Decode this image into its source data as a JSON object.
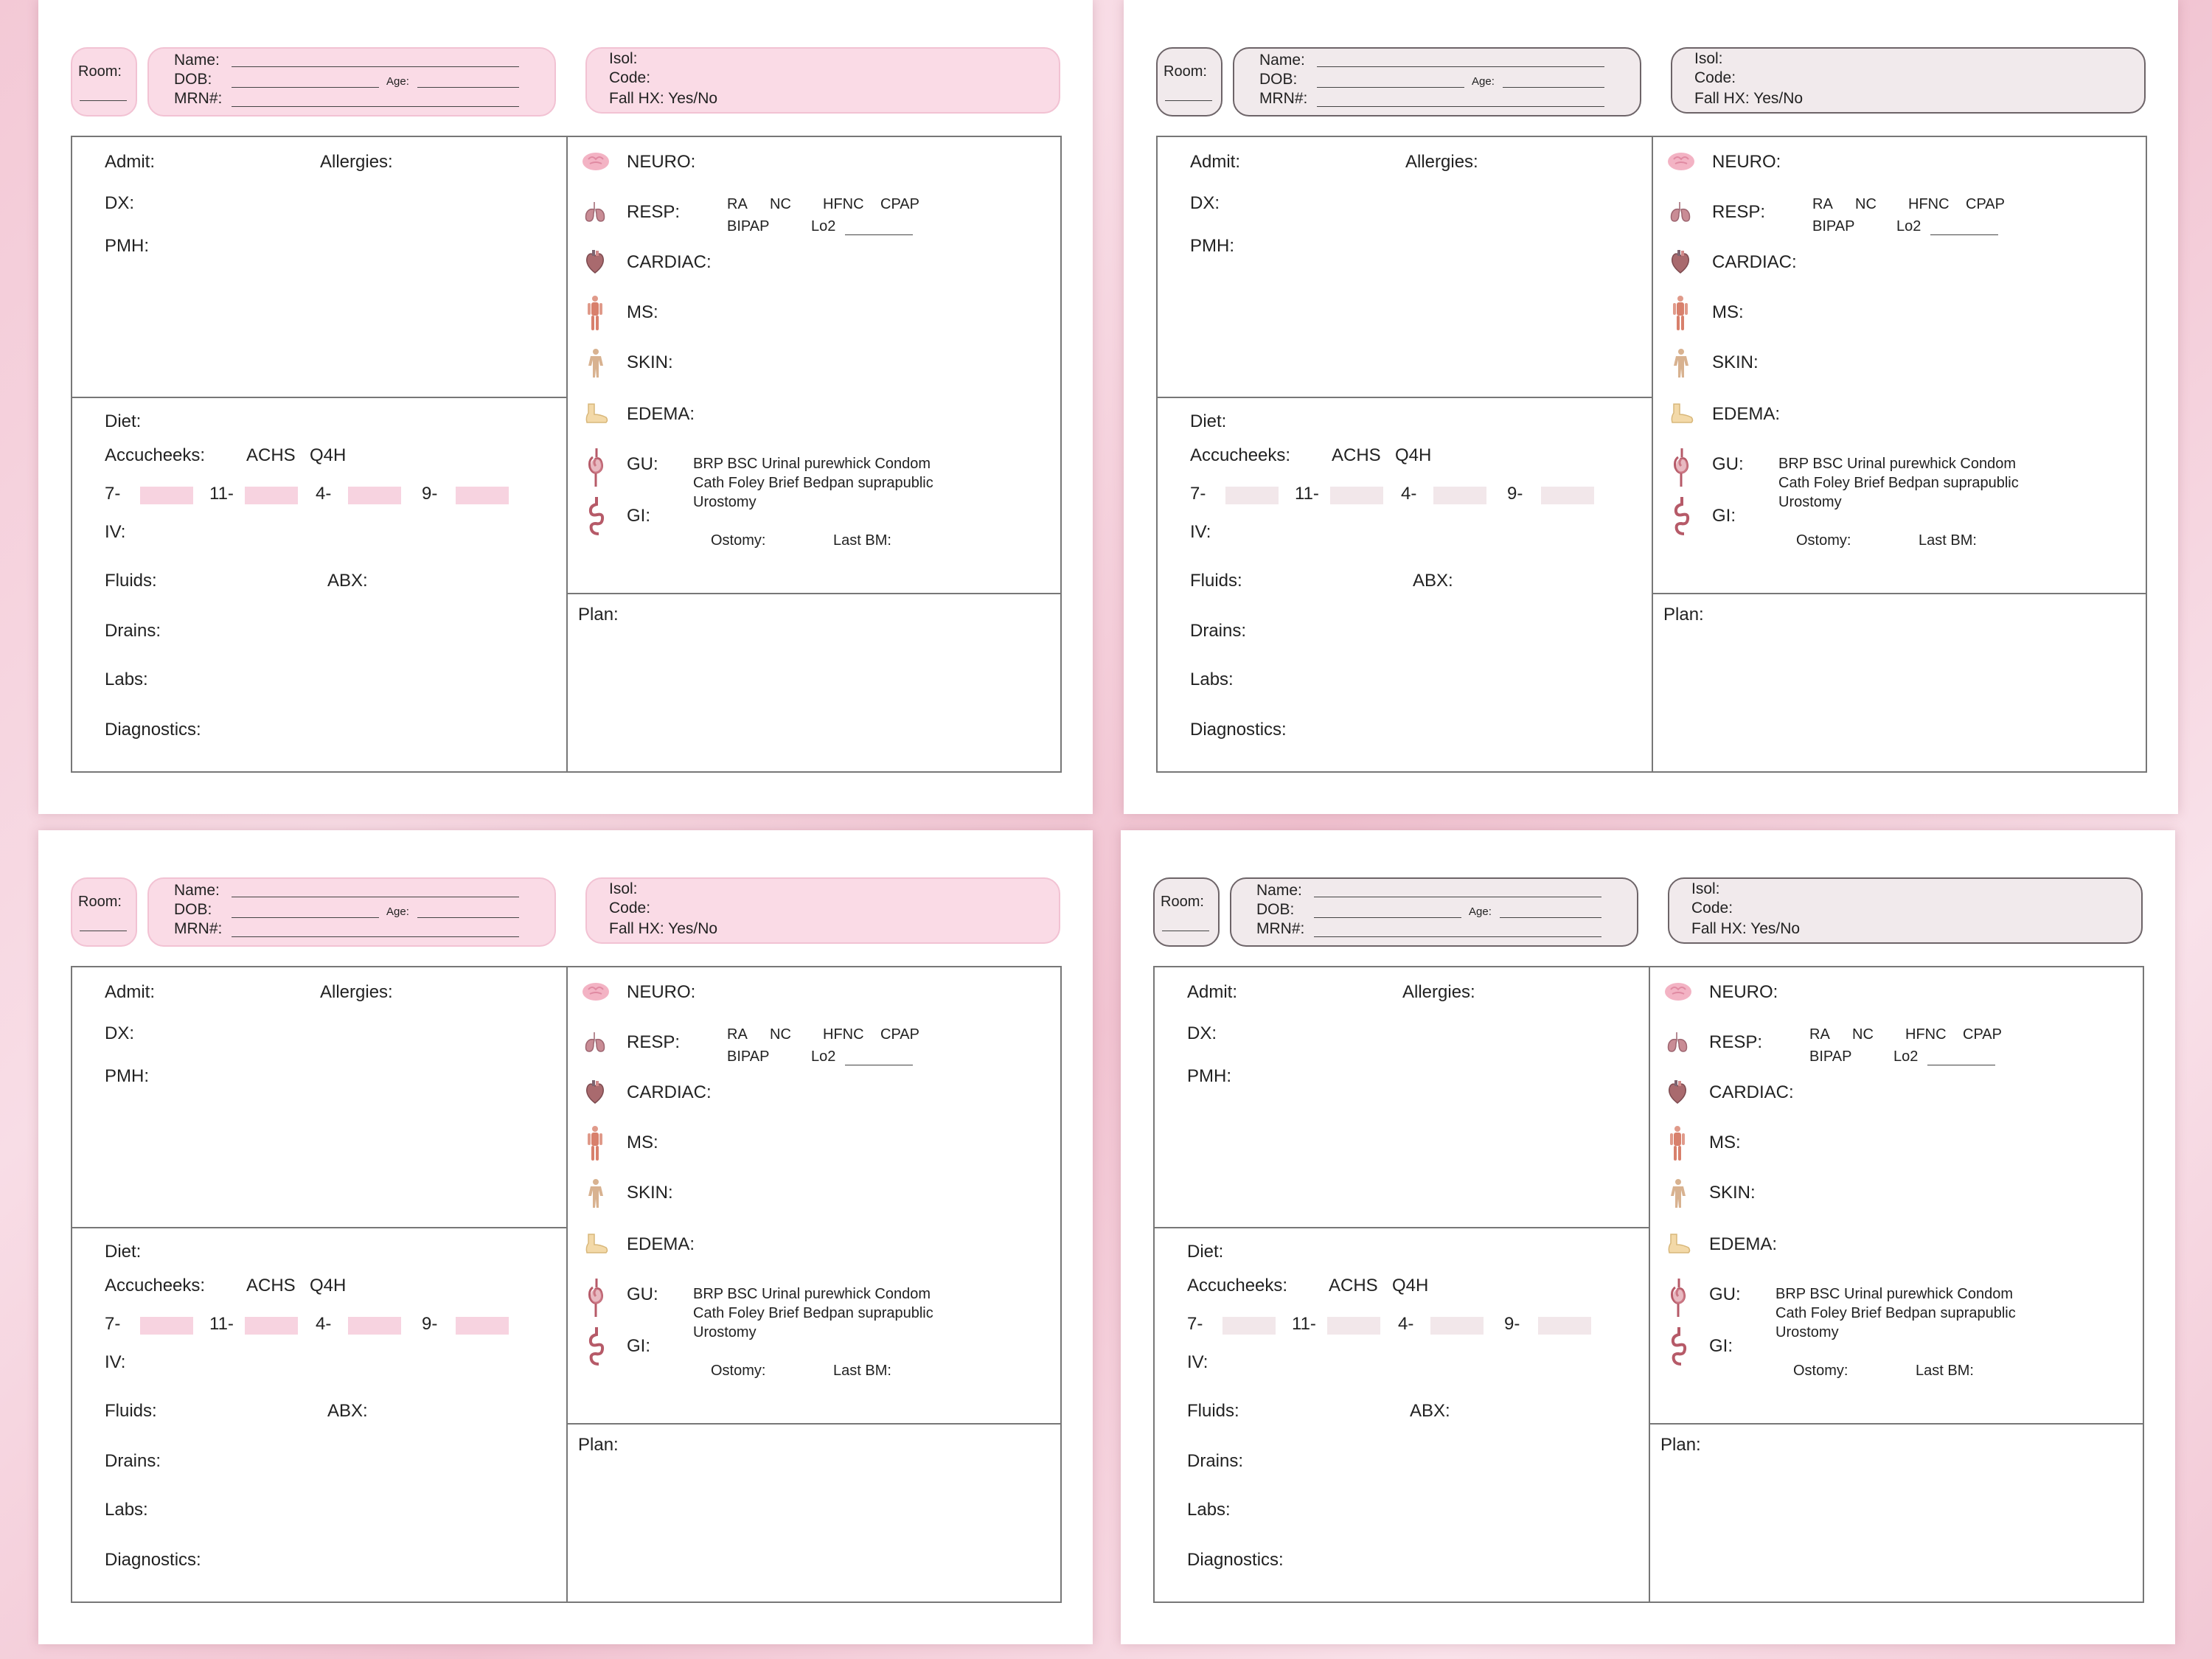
{
  "header": {
    "room_label": "Room:",
    "name_label": "Name:",
    "dob_label": "DOB:",
    "age_label": "Age:",
    "mrn_label": "MRN#:",
    "isol_label": "Isol:",
    "code_label": "Code:",
    "fall_label": "Fall HX: Yes/No"
  },
  "left": {
    "admit": "Admit:",
    "allergies": "Allergies:",
    "dx": "DX:",
    "pmh": "PMH:",
    "diet": "Diet:",
    "accucheeks": "Accucheeks:",
    "achs": "ACHS",
    "q4h": "Q4H",
    "t7": "7-",
    "t11": "11-",
    "t4": "4-",
    "t9": "9-",
    "iv": "IV:",
    "fluids": "Fluids:",
    "abx": "ABX:",
    "drains": "Drains:",
    "labs": "Labs:",
    "diagnostics": "Diagnostics:"
  },
  "right": {
    "neuro": "NEURO:",
    "resp": "RESP:",
    "resp_ra": "RA",
    "resp_nc": "NC",
    "resp_hfnc": "HFNC",
    "resp_cpap": "CPAP",
    "resp_bipap": "BIPAP",
    "resp_lo2": "Lo2",
    "cardiac": "CARDIAC:",
    "ms": "MS:",
    "skin": "SKIN:",
    "edema": "EDEMA:",
    "gu": "GU:",
    "gu_line1": "BRP  BSC  Urinal purewhick  Condom",
    "gu_line2": "Cath  Foley  Brief Bedpan  suprapublic",
    "gu_line3": "Urostomy",
    "gi": "GI:",
    "ostomy": "Ostomy:",
    "last_bm": "Last BM:",
    "plan": "Plan:"
  },
  "icons": [
    "brain-icon",
    "lungs-icon",
    "heart-icon",
    "muscle-body-icon",
    "skin-body-icon",
    "foot-icon",
    "kidney-icon",
    "intestine-icon"
  ],
  "colors": {
    "pink": "#fadbe6",
    "gray": "#f1eaec",
    "accent": "#e8a7b8"
  }
}
